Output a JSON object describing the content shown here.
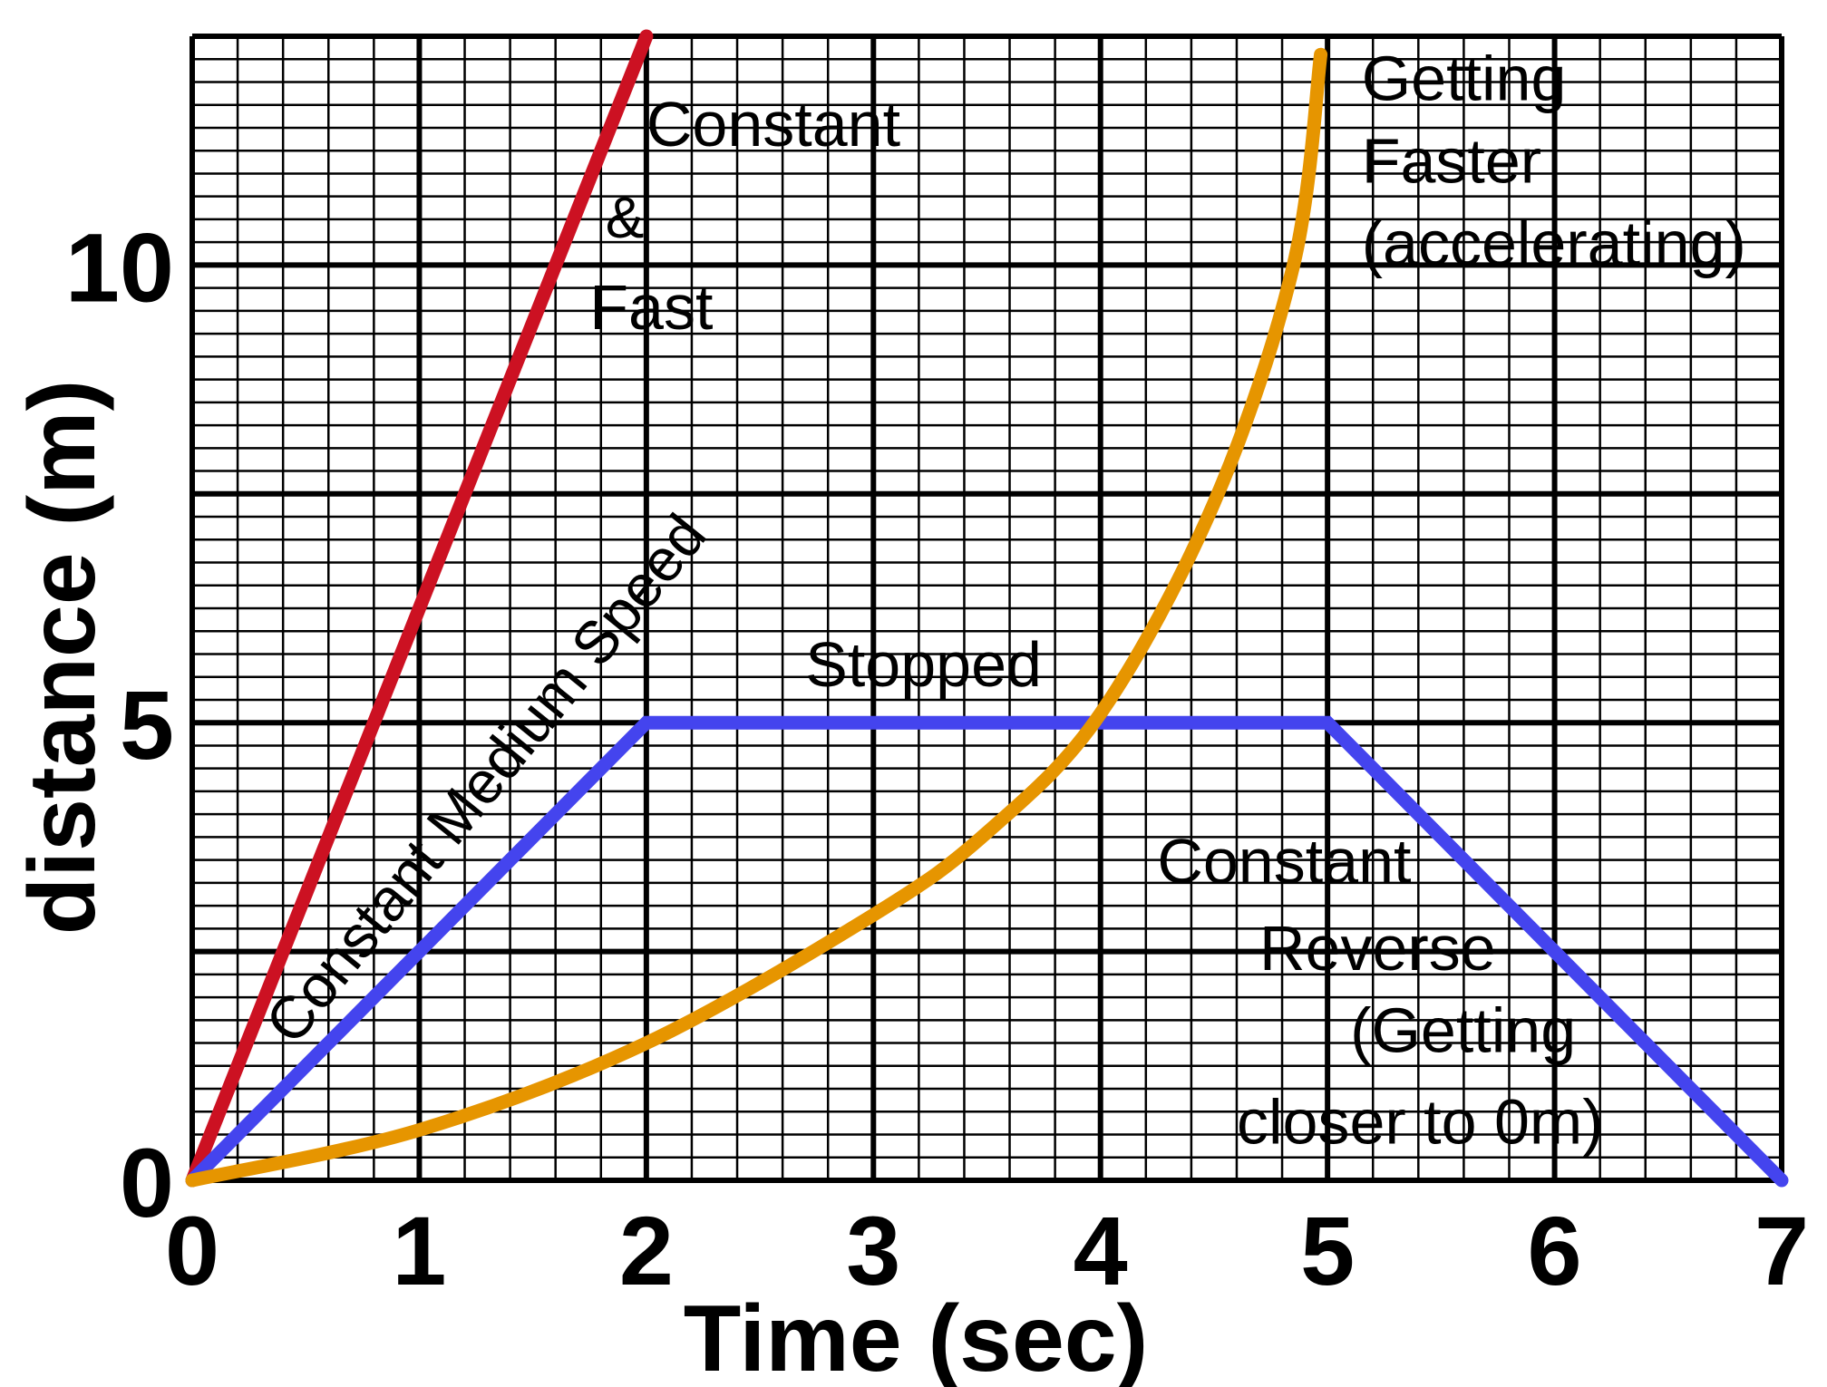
{
  "chart_data": {
    "type": "line",
    "xlabel": "Time (sec)",
    "ylabel": "distance (m)",
    "xlim": [
      0,
      7
    ],
    "ylim": [
      0,
      12.5
    ],
    "x_ticks": [
      "0",
      "1",
      "2",
      "3",
      "4",
      "5",
      "6",
      "7"
    ],
    "y_ticks": [
      {
        "value": 0,
        "label": "0"
      },
      {
        "value": 5,
        "label": "5"
      },
      {
        "value": 10,
        "label": "10"
      }
    ],
    "grid": true,
    "series": [
      {
        "color": "#cc1122",
        "points": [
          [
            0,
            0
          ],
          [
            2,
            12.5
          ]
        ]
      },
      {
        "color": "#4444ee",
        "points": [
          [
            0,
            0
          ],
          [
            2,
            5
          ],
          [
            5,
            5
          ],
          [
            7,
            0
          ]
        ]
      },
      {
        "color": "#e69500",
        "points": [
          [
            0,
            0
          ],
          [
            1,
            0.55
          ],
          [
            2,
            1.5
          ],
          [
            3,
            2.9
          ],
          [
            3.5,
            3.8
          ],
          [
            4,
            5.1
          ],
          [
            4.5,
            7.4
          ],
          [
            4.85,
            10
          ],
          [
            4.97,
            12.3
          ]
        ]
      }
    ],
    "annotations": [
      {
        "lines": [
          "Constant"
        ],
        "x": 2.0,
        "y": 11.3,
        "size": 70
      },
      {
        "lines": [
          "&"
        ],
        "x": 1.82,
        "y": 10.3,
        "size": 64
      },
      {
        "lines": [
          "Fast"
        ],
        "x": 1.75,
        "y": 9.3,
        "size": 70
      },
      {
        "lines": [
          "Stopped"
        ],
        "x": 2.7,
        "y": 5.4,
        "size": 70
      },
      {
        "lines": [
          "Getting"
        ],
        "x": 5.15,
        "y": 11.8,
        "size": 70
      },
      {
        "lines": [
          "Faster"
        ],
        "x": 5.15,
        "y": 10.9,
        "size": 70
      },
      {
        "lines": [
          "(accelerating)"
        ],
        "x": 5.15,
        "y": 10.0,
        "size": 70
      },
      {
        "lines": [
          "Constant"
        ],
        "x": 4.25,
        "y": 3.25,
        "size": 70
      },
      {
        "lines": [
          "Reverse"
        ],
        "x": 4.7,
        "y": 2.3,
        "size": 70
      },
      {
        "lines": [
          "(Getting"
        ],
        "x": 5.1,
        "y": 1.4,
        "size": 70
      },
      {
        "lines": [
          "closer to 0m)"
        ],
        "x": 4.6,
        "y": 0.4,
        "size": 70
      },
      {
        "lines": [
          "Constant Medium Speed"
        ],
        "x": 0.45,
        "y": 1.45,
        "size": 66,
        "rotate": -51
      }
    ]
  }
}
